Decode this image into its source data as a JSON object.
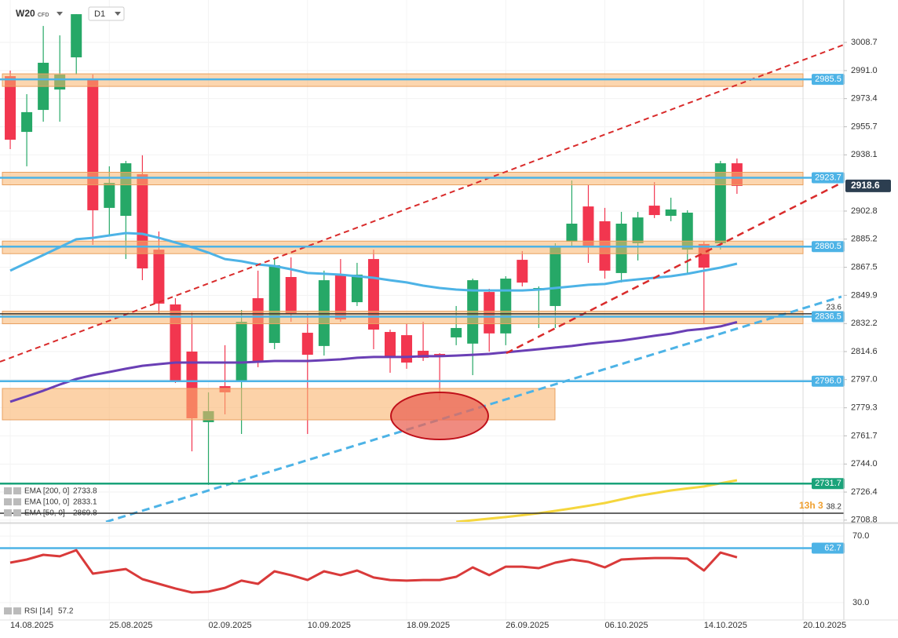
{
  "chart_data": [
    {
      "type": "candlestick",
      "symbol": "W20",
      "instrument_type": "CFD",
      "interval": "D1",
      "countdown": "13h 3",
      "xlim": [
        -0.62,
        50.47
      ],
      "ylim": [
        2707.7,
        3035.3
      ],
      "yticks": [
        3008.7,
        {
          "value": 2991,
          "label": "2991.0"
        },
        2973.4,
        2955.7,
        2938.1,
        2902.8,
        2885.2,
        2867.5,
        2849.9,
        2832.2,
        2814.6,
        {
          "value": 2797,
          "label": "2797.0"
        },
        2779.3,
        2761.7,
        {
          "value": 2744,
          "label": "2744.0"
        },
        2726.4,
        2708.8
      ],
      "up_color": "#26a867",
      "down_color": "#f2364f",
      "last_price_color": "#2c3e50",
      "open": [
        2987.5,
        2952.5,
        2966.3,
        2979.1,
        2999.3,
        2985.1,
        2904.8,
        2899.8,
        2925.9,
        2878.6,
        2844.2,
        2814.6,
        2770.3,
        2792.9,
        2795.4,
        2848.1,
        2820.0,
        2861.4,
        2826.4,
        2818.1,
        2862.9,
        2845.6,
        2872.7,
        2826.9,
        2824.9,
        2815.1,
        2813.1,
        2823.5,
        2819.6,
        2852.0,
        2826.0,
        2872.2,
        2853.0,
        2843.2,
        2883.6,
        2905.7,
        2896.4,
        2863.9,
        2882.6,
        2906.2,
        2899.8,
        2878.6,
        2882.1,
        2882.6,
        2932.8
      ],
      "high": [
        2991.0,
        2976.2,
        3019.0,
        3013.1,
        3026.4,
        2988.5,
        2930.9,
        2934.3,
        2937.8,
        2890.0,
        2848.1,
        2839.2,
        2789.0,
        2818.6,
        2840.7,
        2865.4,
        2872.7,
        2873.7,
        2838.3,
        2865.4,
        2872.7,
        2870.3,
        2878.6,
        2828.4,
        2832.3,
        2833.3,
        2813.6,
        2843.2,
        2860.4,
        2854.0,
        2861.9,
        2877.7,
        2855.5,
        2882.6,
        2922.0,
        2919.5,
        2904.8,
        2902.3,
        2902.3,
        2921.0,
        2911.2,
        2903.3,
        2883.6,
        2934.3,
        2935.8
      ],
      "low": [
        2941.7,
        2930.9,
        2958.9,
        2958.9,
        2988.5,
        2881.6,
        2887.5,
        2872.7,
        2859.4,
        2838.3,
        2794.9,
        2752.0,
        2730.9,
        2775.2,
        2762.9,
        2804.8,
        2816.1,
        2833.3,
        2762.9,
        2812.1,
        2833.3,
        2843.2,
        2816.1,
        2801.3,
        2803.8,
        2808.7,
        2784.1,
        2818.6,
        2799.8,
        2814.6,
        2818.6,
        2855.5,
        2829.4,
        2829.4,
        2880.1,
        2870.3,
        2860.4,
        2858.0,
        2871.8,
        2898.4,
        2896.4,
        2863.9,
        2832.3,
        2878.6,
        2913.6
      ],
      "close": [
        2947.6,
        2964.9,
        2995.9,
        2988.5,
        3026.4,
        2903.3,
        2920.5,
        2932.8,
        2866.8,
        2844.7,
        2796.4,
        2772.7,
        2777.2,
        2789.0,
        2833.3,
        2807.7,
        2868.8,
        2838.3,
        2812.6,
        2859.4,
        2834.8,
        2862.9,
        2828.4,
        2811.2,
        2807.7,
        2810.7,
        2811.2,
        2829.4,
        2859.4,
        2826.0,
        2860.4,
        2857.9,
        2854.5,
        2880.1,
        2894.9,
        2880.1,
        2865.4,
        2894.9,
        2898.8,
        2900.3,
        2903.8,
        2901.8,
        2867.3,
        2932.8,
        2918.6
      ],
      "series": [
        {
          "name": "EMA [200, 0]",
          "color": "#f5d63d",
          "values": [
            null,
            null,
            null,
            null,
            null,
            null,
            null,
            null,
            null,
            null,
            null,
            null,
            null,
            null,
            null,
            null,
            null,
            null,
            null,
            null,
            null,
            null,
            null,
            null,
            null,
            null,
            null,
            2707.7,
            2708.7,
            2709.7,
            2710.7,
            2711.9,
            2713.1,
            2714.6,
            2716.1,
            2717.8,
            2719.5,
            2721.8,
            2724.0,
            2725.7,
            2727.4,
            2728.7,
            2729.9,
            2731.9,
            2733.8
          ]
        },
        {
          "name": "EMA [100, 0]",
          "color": "#6a3fb5",
          "values": [
            2783.1,
            2786.5,
            2790.0,
            2793.9,
            2797.4,
            2799.8,
            2801.8,
            2803.8,
            2805.7,
            2806.7,
            2807.7,
            2807.7,
            2807.7,
            2807.7,
            2807.7,
            2808.2,
            2808.7,
            2808.7,
            2808.7,
            2809.2,
            2809.7,
            2810.7,
            2811.2,
            2811.2,
            2811.2,
            2811.7,
            2811.7,
            2812.1,
            2812.6,
            2813.1,
            2814.1,
            2815.1,
            2816.1,
            2817.1,
            2818.1,
            2819.5,
            2820.5,
            2821.5,
            2823.0,
            2824.5,
            2825.9,
            2827.9,
            2828.9,
            2830.4,
            2833.1
          ]
        },
        {
          "name": "EMA [50, 0]",
          "color": "#4db3e6",
          "values": [
            2865.4,
            2870.3,
            2875.2,
            2880.1,
            2885.1,
            2886.0,
            2887.5,
            2889.0,
            2888.5,
            2886.0,
            2883.1,
            2880.1,
            2876.7,
            2872.7,
            2871.3,
            2869.3,
            2868.3,
            2866.3,
            2863.9,
            2863.4,
            2862.9,
            2861.9,
            2860.9,
            2859.4,
            2858.0,
            2856.0,
            2854.5,
            2853.5,
            2853.0,
            2853.0,
            2853.0,
            2853.0,
            2853.5,
            2854.5,
            2855.5,
            2856.5,
            2857.0,
            2858.9,
            2859.9,
            2860.9,
            2861.9,
            2863.4,
            2865.4,
            2867.3,
            2869.8
          ]
        }
      ],
      "levels": [
        {
          "value": 2985.5,
          "color": "#4db3e6",
          "band": true
        },
        {
          "value": 2923.7,
          "color": "#4db3e6",
          "band": true
        },
        {
          "value": 2880.5,
          "color": "#4db3e6",
          "band": true
        },
        {
          "value": 2836.5,
          "color": "#4db3e6",
          "band": true
        },
        {
          "value": 2796,
          "label": "2796.0",
          "color": "#4db3e6",
          "band": false
        },
        {
          "value": 2731.7,
          "color": "#1aa37a",
          "band": false
        }
      ],
      "fibonacci": [
        {
          "ratio": 23.6,
          "price": 2838.3
        },
        {
          "ratio": 38.2,
          "price": 2713.1
        }
      ]
    },
    {
      "type": "line",
      "name": "RSI [14]",
      "color": "#d93a3a",
      "xlim": [
        -0.62,
        50.47
      ],
      "xticks": [
        {
          "value": 0,
          "label": "14.08.2025"
        },
        {
          "value": 6,
          "label": "25.08.2025"
        },
        {
          "value": 12,
          "label": "02.09.2025"
        },
        {
          "value": 18,
          "label": "10.09.2025"
        },
        {
          "value": 24,
          "label": "18.09.2025"
        },
        {
          "value": 30,
          "label": "26.09.2025"
        },
        {
          "value": 36,
          "label": "06.10.2025"
        },
        {
          "value": 42,
          "label": "14.10.2025"
        },
        {
          "value": 48,
          "label": "20.10.2025"
        }
      ],
      "ylim": [
        19.6,
        77.1
      ],
      "yticks": [
        {
          "value": 70,
          "label": "70.0"
        },
        {
          "value": 30,
          "label": "30.0"
        }
      ],
      "level": {
        "value": 62.7,
        "color": "#4db3e6"
      },
      "values": [
        54.0,
        55.9,
        58.7,
        57.8,
        61.5,
        47.4,
        48.8,
        50.2,
        44.1,
        41.3,
        38.5,
        36.1,
        36.6,
        38.9,
        43.2,
        41.3,
        48.8,
        46.5,
        43.6,
        48.8,
        46.5,
        49.3,
        45.1,
        43.6,
        43.2,
        43.6,
        43.6,
        45.5,
        51.2,
        46.5,
        51.6,
        51.6,
        50.7,
        54.0,
        55.9,
        54.5,
        51.2,
        55.9,
        56.4,
        56.8,
        56.8,
        56.4,
        49.3,
        60.1,
        57.2
      ]
    }
  ]
}
